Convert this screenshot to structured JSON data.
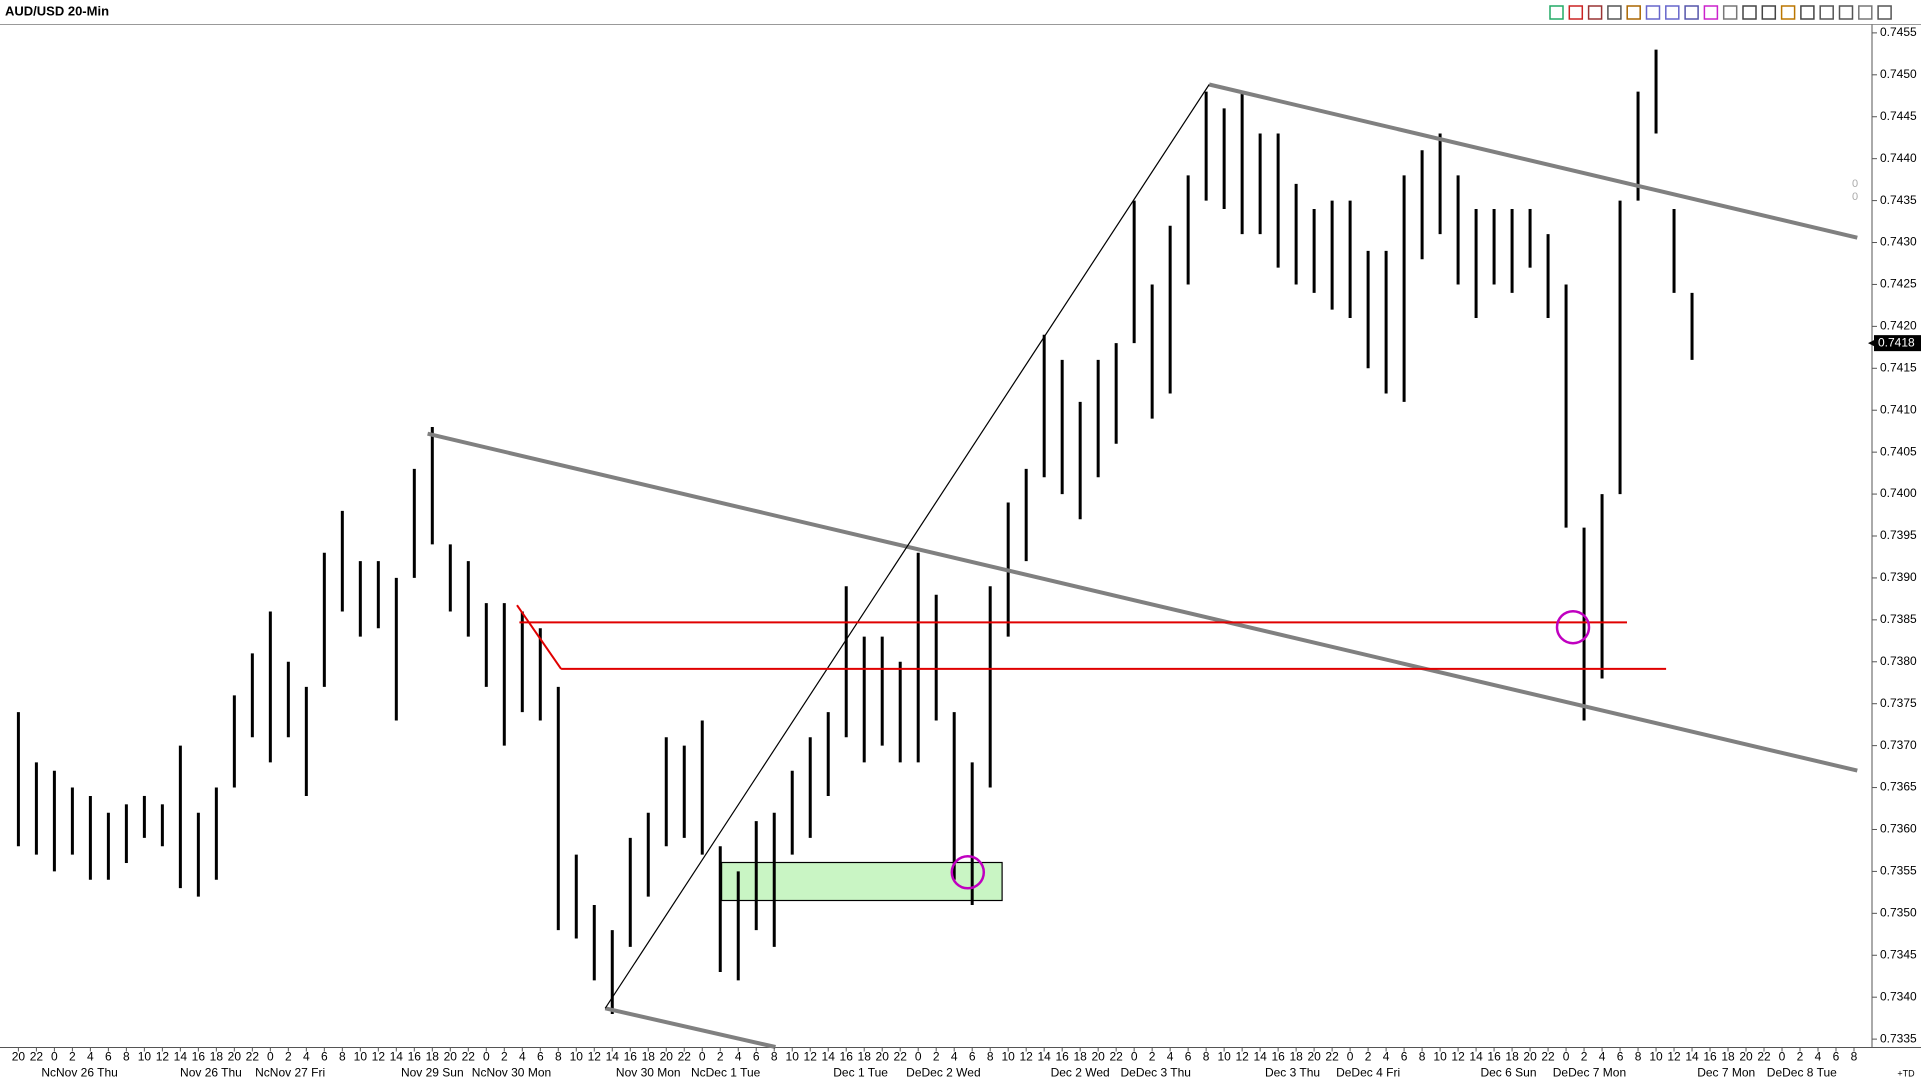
{
  "chart_data": {
    "type": "price_bar",
    "title": "AUD/USD 20-Min",
    "categories": [
      "20",
      "22",
      "0",
      "2",
      "4",
      "6",
      "8",
      "10",
      "12",
      "14",
      "16",
      "18",
      "20",
      "22",
      "0",
      "2",
      "4",
      "6",
      "8",
      "10",
      "12",
      "14",
      "16",
      "18",
      "20",
      "22",
      "0",
      "2",
      "4",
      "6",
      "8",
      "10",
      "12",
      "14",
      "16",
      "18",
      "20",
      "22",
      "0",
      "2",
      "4",
      "6",
      "8",
      "10",
      "12",
      "14",
      "16",
      "18",
      "20",
      "22",
      "0",
      "2",
      "4",
      "6",
      "8",
      "10",
      "12",
      "14",
      "16",
      "18",
      "20",
      "22",
      "0",
      "2",
      "4",
      "6",
      "8",
      "10",
      "12",
      "14",
      "16",
      "18",
      "20",
      "22",
      "0",
      "2",
      "4",
      "6",
      "8",
      "10",
      "12",
      "14",
      "16",
      "18",
      "20",
      "22",
      "0",
      "2",
      "4",
      "6",
      "8",
      "10",
      "12",
      "14",
      "16",
      "18",
      "20",
      "22",
      "0",
      "2",
      "4",
      "6",
      "8"
    ],
    "high": [
      0.7374,
      0.7368,
      0.7367,
      0.7365,
      0.7364,
      0.7362,
      0.7363,
      0.7364,
      0.7363,
      0.737,
      0.7362,
      0.7365,
      0.7376,
      0.7381,
      0.7386,
      0.738,
      0.7377,
      0.7393,
      0.7398,
      0.7392,
      0.7392,
      0.739,
      0.7403,
      0.7408,
      0.7394,
      0.7392,
      0.7387,
      0.7387,
      0.7386,
      0.7384,
      0.7377,
      0.7357,
      0.7351,
      0.7348,
      0.7359,
      0.7362,
      0.7371,
      0.737,
      0.7373,
      0.7358,
      0.7355,
      0.7361,
      0.7362,
      0.7367,
      0.7371,
      0.7374,
      0.7389,
      0.7383,
      0.7383,
      0.738,
      0.7393,
      0.7388,
      0.7374,
      0.7368,
      0.7389,
      0.7399,
      0.7403,
      0.7419,
      0.7416,
      0.7411,
      0.7416,
      0.7418,
      0.7435,
      0.7425,
      0.7432,
      0.7438,
      0.7448,
      0.7446,
      0.7448,
      0.7443,
      0.7443,
      0.7437,
      0.7434,
      0.7435,
      0.7435,
      0.7429,
      0.7429,
      0.7438,
      0.7441,
      0.7443,
      0.7438,
      0.7434,
      0.7434,
      0.7434,
      0.7434,
      0.7431,
      0.7425,
      0.7396,
      0.74,
      0.7435,
      0.7448,
      0.7453,
      0.7434,
      0.7424,
      null,
      null,
      null,
      null,
      null,
      null,
      null,
      null,
      null
    ],
    "low": [
      0.7358,
      0.7357,
      0.7355,
      0.7357,
      0.7354,
      0.7354,
      0.7356,
      0.7359,
      0.7358,
      0.7353,
      0.7352,
      0.7354,
      0.7365,
      0.7371,
      0.7368,
      0.7371,
      0.7364,
      0.7377,
      0.7386,
      0.7383,
      0.7384,
      0.7373,
      0.739,
      0.7394,
      0.7386,
      0.7383,
      0.7377,
      0.737,
      0.7374,
      0.7373,
      0.7348,
      0.7347,
      0.7342,
      0.7338,
      0.7346,
      0.7352,
      0.7358,
      0.7359,
      0.7357,
      0.7343,
      0.7342,
      0.7348,
      0.7346,
      0.7357,
      0.7359,
      0.7364,
      0.7371,
      0.7368,
      0.737,
      0.7368,
      0.7368,
      0.7373,
      0.7354,
      0.7351,
      0.7365,
      0.7383,
      0.7392,
      0.7402,
      0.74,
      0.7397,
      0.7402,
      0.7406,
      0.7418,
      0.7409,
      0.7412,
      0.7425,
      0.7435,
      0.7434,
      0.7431,
      0.7431,
      0.7427,
      0.7425,
      0.7424,
      0.7422,
      0.7421,
      0.7415,
      0.7412,
      0.7411,
      0.7428,
      0.7431,
      0.7425,
      0.7421,
      0.7425,
      0.7424,
      0.7427,
      0.7421,
      0.7396,
      0.7373,
      0.7378,
      0.74,
      0.7435,
      0.7443,
      0.7424,
      0.7416,
      null,
      null,
      null,
      null,
      null,
      null,
      null,
      null,
      null
    ],
    "color": "#000000",
    "date_labels": [
      {
        "value": 3.4,
        "label": "NcNov 26 Thu"
      },
      {
        "value": 10.7,
        "label": "Nov 26 Thu"
      },
      {
        "value": 15.1,
        "label": "NcNov 27 Fri"
      },
      {
        "value": 23,
        "label": "Nov 29 Sun"
      },
      {
        "value": 27.4,
        "label": "NcNov 30 Mon"
      },
      {
        "value": 35,
        "label": "Nov 30 Mon"
      },
      {
        "value": 39.3,
        "label": "NcDec 1 Tue"
      },
      {
        "value": 46.8,
        "label": "Dec 1 Tue"
      },
      {
        "value": 51.4,
        "label": "DeDec 2 Wed"
      },
      {
        "value": 59,
        "label": "Dec 2 Wed"
      },
      {
        "value": 63.2,
        "label": "DeDec 3 Thu"
      },
      {
        "value": 70.8,
        "label": "Dec 3 Thu"
      },
      {
        "value": 75,
        "label": "DeDec 4 Fri"
      },
      {
        "value": 82.8,
        "label": "Dec 6 Sun"
      },
      {
        "value": 87.3,
        "label": "DeDec 7 Mon"
      },
      {
        "value": 94.9,
        "label": "Dec 7 Mon"
      },
      {
        "value": 99.1,
        "label": "DeDec 8 Tue"
      }
    ],
    "ylim": [
      0.7334,
      0.7456
    ],
    "yticks": [
      0.7335,
      {
        "value": 0.734,
        "label": "0.7340"
      },
      0.7345,
      {
        "value": 0.735,
        "label": "0.7350"
      },
      0.7355,
      {
        "value": 0.736,
        "label": "0.7360"
      },
      0.7365,
      {
        "value": 0.737,
        "label": "0.7370"
      },
      0.7375,
      {
        "value": 0.738,
        "label": "0.7380"
      },
      0.7385,
      {
        "value": 0.739,
        "label": "0.7390"
      },
      0.7395,
      {
        "value": 0.74,
        "label": "0.7400"
      },
      0.7405,
      {
        "value": 0.741,
        "label": "0.7410"
      },
      0.7415,
      {
        "value": 0.742,
        "label": "0.7420"
      },
      0.7425,
      {
        "value": 0.743,
        "label": "0.7430"
      },
      0.7435,
      {
        "value": 0.744,
        "label": "0.7440"
      },
      0.7445,
      {
        "value": 0.745,
        "label": "0.7450"
      },
      0.7455
    ],
    "last_price": 0.7418,
    "indicator_values": [
      0,
      0
    ],
    "corner_label": "+TD"
  }
}
